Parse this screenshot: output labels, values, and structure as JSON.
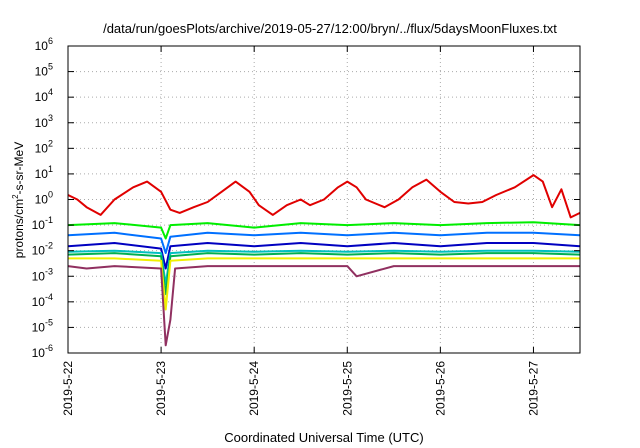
{
  "chart_data": {
    "type": "line",
    "title": "/data/run/goesPlots/archive/2019-05-27/12:00/bryn/../flux/5daysMoonFluxes.txt",
    "xlabel": "Coordinated Universal Time (UTC)",
    "ylabel_prefix": "protons/cm",
    "ylabel_sup": "2",
    "ylabel_suffix": "-s-sr-MeV",
    "yscale": "log",
    "ylim": [
      1e-06,
      1000000.0
    ],
    "xlim": [
      0,
      5.5
    ],
    "grid": true,
    "y_ticks": [
      {
        "mant": "10",
        "exp": "-6",
        "v": -6
      },
      {
        "mant": "10",
        "exp": "-5",
        "v": -5
      },
      {
        "mant": "10",
        "exp": "-4",
        "v": -4
      },
      {
        "mant": "10",
        "exp": "-3",
        "v": -3
      },
      {
        "mant": "10",
        "exp": "-2",
        "v": -2
      },
      {
        "mant": "10",
        "exp": "-1",
        "v": -1
      },
      {
        "mant": "10",
        "exp": "0",
        "v": 0
      },
      {
        "mant": "10",
        "exp": "1",
        "v": 1
      },
      {
        "mant": "10",
        "exp": "2",
        "v": 2
      },
      {
        "mant": "10",
        "exp": "3",
        "v": 3
      },
      {
        "mant": "10",
        "exp": "4",
        "v": 4
      },
      {
        "mant": "10",
        "exp": "5",
        "v": 5
      },
      {
        "mant": "10",
        "exp": "6",
        "v": 6
      }
    ],
    "x_ticks": [
      {
        "label": "2019-5-22",
        "v": 0
      },
      {
        "label": "2019-5-23",
        "v": 1
      },
      {
        "label": "2019-5-24",
        "v": 2
      },
      {
        "label": "2019-5-25",
        "v": 3
      },
      {
        "label": "2019-5-26",
        "v": 4
      },
      {
        "label": "2019-5-27",
        "v": 5
      }
    ],
    "series": [
      {
        "color": "#e00000",
        "x": [
          0,
          0.1,
          0.2,
          0.35,
          0.5,
          0.7,
          0.85,
          1.0,
          1.1,
          1.2,
          1.35,
          1.5,
          1.65,
          1.8,
          1.95,
          2.05,
          2.2,
          2.35,
          2.5,
          2.6,
          2.75,
          2.9,
          3.0,
          3.1,
          3.2,
          3.4,
          3.55,
          3.7,
          3.85,
          4.0,
          4.15,
          4.3,
          4.45,
          4.6,
          4.8,
          5.0,
          5.1,
          5.2,
          5.3,
          5.4,
          5.5
        ],
        "y": [
          1.5,
          1.0,
          0.5,
          0.25,
          1.0,
          3.0,
          5.0,
          2.0,
          0.4,
          0.3,
          0.5,
          0.8,
          2.0,
          5.0,
          2.0,
          0.6,
          0.25,
          0.6,
          1.0,
          0.6,
          1.0,
          3.0,
          5.0,
          3.0,
          1.0,
          0.5,
          1.0,
          3.0,
          6.0,
          2.0,
          0.8,
          0.7,
          0.8,
          1.5,
          3.0,
          9.0,
          5.0,
          0.5,
          2.5,
          0.2,
          0.3
        ]
      },
      {
        "color": "#00ee00",
        "x": [
          0,
          0.5,
          1.0,
          1.05,
          1.1,
          1.5,
          2.0,
          2.5,
          3.0,
          3.5,
          4.0,
          4.5,
          5.0,
          5.5
        ],
        "y": [
          0.1,
          0.12,
          0.08,
          0.03,
          0.1,
          0.12,
          0.08,
          0.12,
          0.1,
          0.12,
          0.1,
          0.12,
          0.13,
          0.1
        ]
      },
      {
        "color": "#0070ff",
        "x": [
          0,
          0.5,
          1.0,
          1.05,
          1.1,
          1.5,
          2.0,
          2.5,
          3.0,
          3.5,
          4.0,
          4.5,
          5.0,
          5.5
        ],
        "y": [
          0.04,
          0.05,
          0.03,
          0.008,
          0.035,
          0.05,
          0.04,
          0.05,
          0.04,
          0.05,
          0.04,
          0.05,
          0.05,
          0.04
        ]
      },
      {
        "color": "#0000c0",
        "x": [
          0,
          0.5,
          1.0,
          1.05,
          1.1,
          1.5,
          2.0,
          2.5,
          3.0,
          3.5,
          4.0,
          4.5,
          5.0,
          5.5
        ],
        "y": [
          0.015,
          0.02,
          0.012,
          0.002,
          0.015,
          0.02,
          0.015,
          0.02,
          0.015,
          0.02,
          0.015,
          0.02,
          0.02,
          0.015
        ]
      },
      {
        "color": "#00c0c0",
        "x": [
          0,
          0.5,
          1.0,
          1.05,
          1.1,
          1.5,
          2.0,
          2.5,
          3.0,
          3.5,
          4.0,
          4.5,
          5.0,
          5.5
        ],
        "y": [
          0.009,
          0.01,
          0.008,
          0.0005,
          0.008,
          0.01,
          0.009,
          0.01,
          0.009,
          0.01,
          0.009,
          0.01,
          0.01,
          0.009
        ]
      },
      {
        "color": "#00b050",
        "x": [
          0,
          0.5,
          1.0,
          1.05,
          1.1,
          1.5,
          2.0,
          2.5,
          3.0,
          3.5,
          4.0,
          4.5,
          5.0,
          5.5
        ],
        "y": [
          0.007,
          0.008,
          0.006,
          0.0002,
          0.006,
          0.008,
          0.007,
          0.008,
          0.007,
          0.008,
          0.007,
          0.008,
          0.008,
          0.007
        ]
      },
      {
        "color": "#f0f000",
        "x": [
          0,
          0.5,
          1.0,
          1.05,
          1.1,
          1.5,
          2.0,
          2.5,
          3.0,
          3.5,
          4.0,
          4.5,
          5.0,
          5.5
        ],
        "y": [
          0.005,
          0.005,
          0.004,
          5e-05,
          0.004,
          0.005,
          0.005,
          0.005,
          0.005,
          0.005,
          0.005,
          0.005,
          0.005,
          0.005
        ]
      },
      {
        "color": "#903060",
        "x": [
          0,
          0.2,
          0.5,
          1.0,
          1.05,
          1.1,
          1.15,
          1.5,
          2.0,
          2.5,
          3.0,
          3.1,
          3.5,
          4.0,
          4.5,
          5.0,
          5.5
        ],
        "y": [
          0.0025,
          0.002,
          0.0025,
          0.002,
          2e-06,
          2e-05,
          0.002,
          0.0025,
          0.0025,
          0.0025,
          0.0025,
          0.001,
          0.0025,
          0.0025,
          0.0025,
          0.0025,
          0.0025
        ]
      }
    ]
  }
}
